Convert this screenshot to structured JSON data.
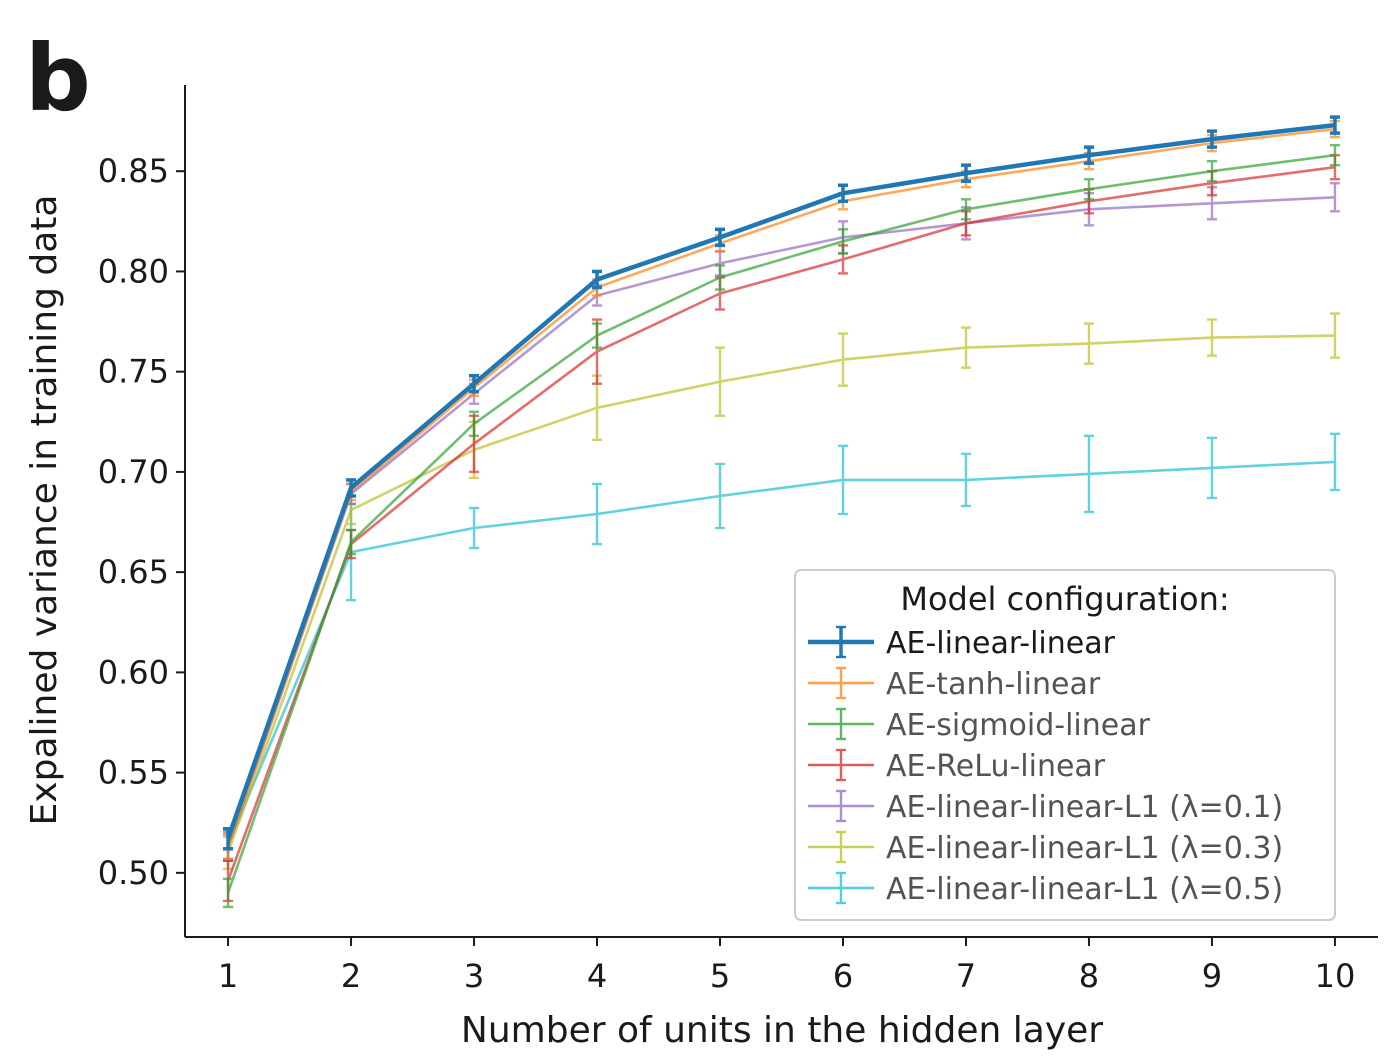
{
  "panel_label": "b",
  "chart_data": {
    "type": "line",
    "xlabel": "Number of units in the hidden layer",
    "ylabel": "Expalined variance in training data",
    "x": [
      1,
      2,
      3,
      4,
      5,
      6,
      7,
      8,
      9,
      10
    ],
    "xlim": [
      0.65,
      10.35
    ],
    "ylim": [
      0.468,
      0.893
    ],
    "xticks": [
      "1",
      "2",
      "3",
      "4",
      "5",
      "6",
      "7",
      "8",
      "9",
      "10"
    ],
    "yticks": [
      "0.50",
      "0.55",
      "0.60",
      "0.65",
      "0.70",
      "0.75",
      "0.80",
      "0.85"
    ],
    "error_bars": true,
    "grid": false,
    "legend": {
      "title": "Model configuration:",
      "placement": "lower-right"
    },
    "series": [
      {
        "name": "AE-linear-linear",
        "color": "#1f77b4",
        "values": [
          0.517,
          0.692,
          0.744,
          0.796,
          0.817,
          0.839,
          0.849,
          0.858,
          0.866,
          0.873
        ],
        "errors": [
          0.005,
          0.004,
          0.004,
          0.004,
          0.004,
          0.004,
          0.004,
          0.004,
          0.004,
          0.004
        ]
      },
      {
        "name": "AE-tanh-linear",
        "color": "#ff7f0e",
        "values": [
          0.513,
          0.69,
          0.742,
          0.792,
          0.814,
          0.835,
          0.846,
          0.855,
          0.864,
          0.871
        ],
        "errors": [
          0.006,
          0.004,
          0.004,
          0.004,
          0.004,
          0.004,
          0.004,
          0.004,
          0.004,
          0.004
        ]
      },
      {
        "name": "AE-sigmoid-linear",
        "color": "#2ca02c",
        "values": [
          0.49,
          0.665,
          0.724,
          0.768,
          0.797,
          0.815,
          0.831,
          0.841,
          0.85,
          0.858
        ],
        "errors": [
          0.007,
          0.006,
          0.006,
          0.006,
          0.006,
          0.006,
          0.005,
          0.005,
          0.005,
          0.005
        ]
      },
      {
        "name": "AE-ReLu-linear",
        "color": "#d62728",
        "values": [
          0.496,
          0.664,
          0.714,
          0.76,
          0.789,
          0.806,
          0.824,
          0.835,
          0.844,
          0.852
        ],
        "errors": [
          0.01,
          0.007,
          0.014,
          0.016,
          0.008,
          0.007,
          0.006,
          0.006,
          0.006,
          0.006
        ]
      },
      {
        "name": "AE-linear-linear-L1 (λ=0.1)",
        "color": "#9467bd",
        "values": [
          0.513,
          0.689,
          0.739,
          0.788,
          0.804,
          0.817,
          0.824,
          0.831,
          0.834,
          0.837
        ],
        "errors": [
          0.007,
          0.005,
          0.005,
          0.005,
          0.006,
          0.008,
          0.008,
          0.008,
          0.008,
          0.007
        ]
      },
      {
        "name": "AE-linear-linear-L1 (λ=0.3)",
        "color": "#bcbd22",
        "values": [
          0.51,
          0.681,
          0.711,
          0.732,
          0.745,
          0.756,
          0.762,
          0.764,
          0.767,
          0.768
        ],
        "errors": [
          0.008,
          0.007,
          0.014,
          0.016,
          0.017,
          0.013,
          0.01,
          0.01,
          0.009,
          0.011
        ]
      },
      {
        "name": "AE-linear-linear-L1 (λ=0.5)",
        "color": "#17becf",
        "values": [
          0.514,
          0.66,
          0.672,
          0.679,
          0.688,
          0.696,
          0.696,
          0.699,
          0.702,
          0.705
        ],
        "errors": [
          0.007,
          0.024,
          0.01,
          0.015,
          0.016,
          0.017,
          0.013,
          0.019,
          0.015,
          0.014
        ]
      }
    ]
  }
}
